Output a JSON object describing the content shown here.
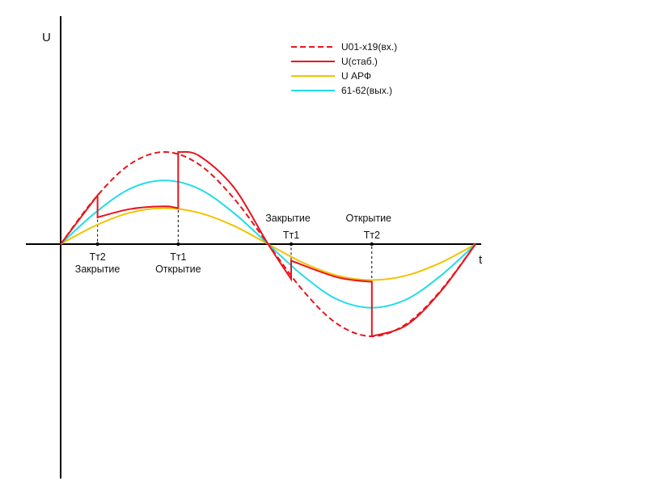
{
  "chart_data": {
    "type": "line",
    "xlabel": "t",
    "ylabel": "U",
    "x_range": [
      0,
      360
    ],
    "y_range": [
      -1.3,
      1.3
    ],
    "legend_position": "top-right",
    "colors": {
      "red": "#e8141c",
      "yellow": "#f2c300",
      "cyan": "#22dce8",
      "axis": "#000000"
    },
    "series": [
      {
        "name": "U01-x19(вх.)",
        "color": "#e8141c",
        "style": "dashed",
        "x": [
          0,
          30,
          60,
          90,
          120,
          150,
          180,
          210,
          240,
          270,
          300,
          330,
          360
        ],
        "y": [
          0,
          0.5,
          0.866,
          1.0,
          0.866,
          0.5,
          0,
          -0.5,
          -0.866,
          -1.0,
          -0.866,
          -0.5,
          0
        ]
      },
      {
        "name": "U(стаб.)",
        "color": "#e8141c",
        "style": "solid",
        "x": [
          0,
          32,
          32,
          60,
          90,
          102,
          102,
          120,
          150,
          180,
          200,
          200,
          240,
          270,
          270,
          300,
          330,
          360
        ],
        "y": [
          0,
          0.53,
          0.29,
          0.38,
          0.41,
          0.39,
          1.0,
          0.96,
          0.62,
          0,
          -0.38,
          -0.18,
          -0.36,
          -0.41,
          -1.0,
          -0.88,
          -0.51,
          0
        ]
      },
      {
        "name": "U АРФ",
        "color": "#f2c300",
        "style": "solid",
        "x": [
          0,
          30,
          60,
          90,
          120,
          150,
          180,
          210,
          240,
          270,
          300,
          330,
          360
        ],
        "y": [
          0,
          0.2,
          0.34,
          0.39,
          0.34,
          0.2,
          0,
          -0.2,
          -0.34,
          -0.39,
          -0.34,
          -0.2,
          0
        ]
      },
      {
        "name": "61-62(вых.)",
        "color": "#22dce8",
        "style": "solid",
        "x": [
          0,
          30,
          60,
          90,
          120,
          150,
          180,
          210,
          240,
          270,
          300,
          330,
          360
        ],
        "y": [
          0,
          0.34,
          0.6,
          0.69,
          0.6,
          0.34,
          0,
          -0.34,
          -0.6,
          -0.69,
          -0.6,
          -0.34,
          0
        ]
      }
    ],
    "markers": [
      {
        "x": 32,
        "top": "",
        "label": "Тт2",
        "note": "Закрытие",
        "position": "below",
        "line_to": 0.53
      },
      {
        "x": 102,
        "top": "",
        "label": "Тт1",
        "note": "Открытие",
        "position": "below",
        "line_to": 1.0
      },
      {
        "x": 200,
        "top": "Закрытие",
        "label": "Тт1",
        "note": "",
        "position": "above",
        "line_to": -0.38
      },
      {
        "x": 270,
        "top": "Открытие",
        "label": "Тт2",
        "note": "",
        "position": "above",
        "line_to": -1.0
      }
    ]
  }
}
